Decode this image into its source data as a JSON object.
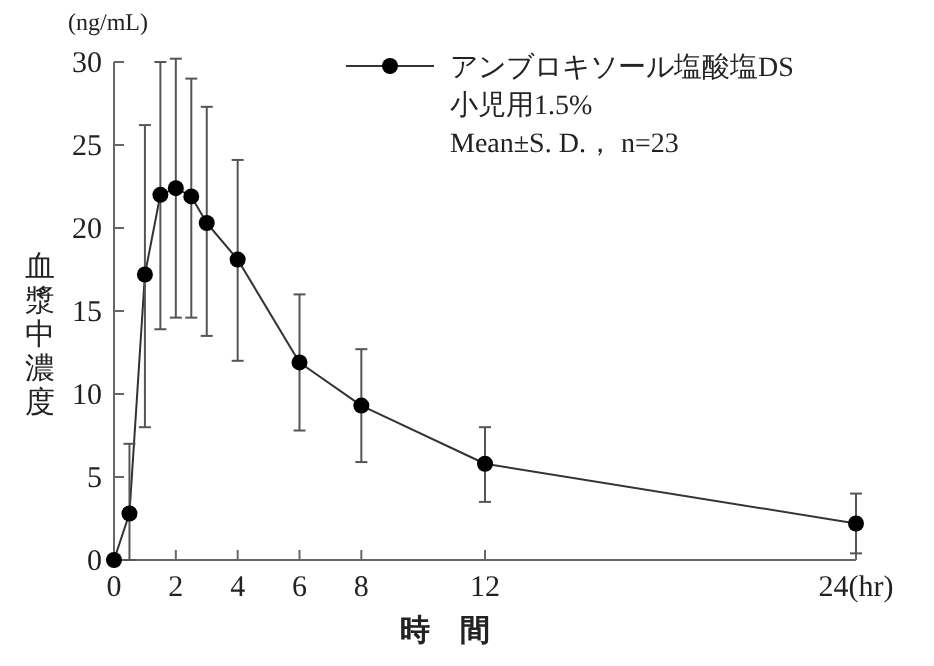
{
  "chart_data": {
    "type": "line",
    "ylabel": "血漿中濃度",
    "xlabel": "時　間",
    "annotations": [
      "(ng/mL)",
      "Mean±S. D.， n=23"
    ],
    "x": [
      0,
      0.5,
      1,
      1.5,
      2,
      2.5,
      3,
      4,
      6,
      8,
      12,
      24
    ],
    "series": [
      {
        "name": "アンブロキソール塩酸塩DS 小児用1.5%",
        "color": "#333333",
        "values": [
          0,
          2.8,
          17.2,
          22.0,
          22.4,
          21.9,
          20.3,
          18.1,
          11.9,
          9.3,
          5.8,
          2.2
        ],
        "errors": [
          null,
          [
            0,
            7.0
          ],
          [
            8.0,
            26.2
          ],
          [
            13.9,
            30.0
          ],
          [
            14.6,
            30.2
          ],
          [
            14.6,
            29.0
          ],
          [
            13.5,
            27.3
          ],
          [
            12.0,
            24.1
          ],
          [
            7.8,
            16.0
          ],
          [
            5.9,
            12.7
          ],
          [
            3.5,
            8.0
          ],
          [
            0.4,
            4.0
          ]
        ]
      }
    ],
    "xlim": [
      0,
      24
    ],
    "ylim": [
      0,
      30
    ],
    "xticks": [
      0,
      2,
      4,
      6,
      8,
      12,
      {
        "value": 24,
        "label": "24(hr)"
      }
    ],
    "yticks": [
      0,
      5,
      10,
      15,
      20,
      25,
      30
    ],
    "marker": "circle",
    "line_style": "solid",
    "legend": "top right",
    "grid": false
  }
}
